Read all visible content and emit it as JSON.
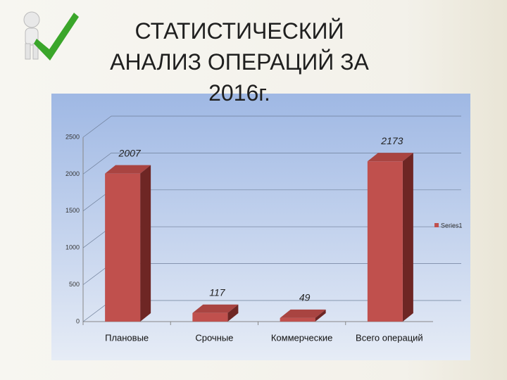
{
  "title": "СТАТИСТИЧЕСКИЙ АНАЛИЗ ОПЕРАЦИЙ ЗА 2016г.",
  "chart_data": {
    "type": "bar",
    "categories": [
      "Плановые",
      "Срочные",
      "Коммерческие",
      "Всего операций"
    ],
    "series": [
      {
        "name": "Series1",
        "color": "#c0504d",
        "values": [
          2007,
          117,
          49,
          2173
        ]
      }
    ],
    "ylim": [
      0,
      2500
    ],
    "yticks": [
      0,
      500,
      1000,
      1500,
      2000,
      2500
    ],
    "grid": true,
    "legend": "right"
  }
}
